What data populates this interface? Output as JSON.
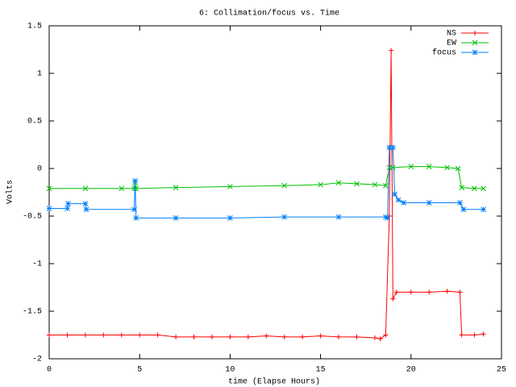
{
  "chart_data": {
    "type": "line",
    "title": "6: Collimation/focus vs. Time",
    "x_label": "time (Elapse Hours)",
    "y_label": "Volts",
    "xlim": [
      0,
      25
    ],
    "xticks": [
      0,
      5,
      10,
      15,
      20,
      25
    ],
    "ylim": [
      -2,
      1.5
    ],
    "yticks": [
      -2,
      -1.5,
      -1,
      -0.5,
      0,
      0.5,
      1,
      1.5
    ],
    "legend": "top-right",
    "series": [
      {
        "name": "NS",
        "color": "#ff0000",
        "marker": "plus",
        "x": [
          0,
          1,
          2,
          3,
          4,
          5,
          6,
          7,
          8,
          9,
          10,
          11,
          12,
          13,
          14,
          15,
          16,
          17,
          18,
          18.3,
          18.6,
          18.8,
          18.9,
          19.0,
          19.2,
          20,
          21,
          22,
          22.7,
          22.8,
          23.5,
          24
        ],
        "values": [
          -1.75,
          -1.75,
          -1.75,
          -1.75,
          -1.75,
          -1.75,
          -1.75,
          -1.77,
          -1.77,
          -1.77,
          -1.77,
          -1.77,
          -1.76,
          -1.77,
          -1.77,
          -1.76,
          -1.77,
          -1.77,
          -1.78,
          -1.79,
          -1.75,
          -0.5,
          1.24,
          -1.37,
          -1.3,
          -1.3,
          -1.3,
          -1.29,
          -1.3,
          -1.75,
          -1.75,
          -1.74
        ]
      },
      {
        "name": "EW",
        "color": "#00c000",
        "marker": "cross",
        "x": [
          0,
          2,
          4,
          4.7,
          4.75,
          4.8,
          7,
          10,
          13,
          15,
          16,
          17,
          18,
          18.6,
          18.8,
          19,
          20,
          21,
          22,
          22.6,
          22.8,
          23.5,
          24
        ],
        "values": [
          -0.21,
          -0.21,
          -0.21,
          -0.21,
          -0.15,
          -0.21,
          -0.2,
          -0.19,
          -0.18,
          -0.17,
          -0.15,
          -0.16,
          -0.17,
          -0.18,
          0.01,
          0.01,
          0.02,
          0.02,
          0.01,
          0.0,
          -0.2,
          -0.21,
          -0.21
        ]
      },
      {
        "name": "focus",
        "color": "#0080ff",
        "marker": "star",
        "x": [
          0,
          1,
          1.05,
          2,
          2.05,
          4.7,
          4.75,
          4.8,
          7,
          10,
          13,
          16,
          18.6,
          18.7,
          18.8,
          19.0,
          19.1,
          19.3,
          19.6,
          21,
          22.7,
          22.9,
          24
        ],
        "values": [
          -0.42,
          -0.42,
          -0.37,
          -0.37,
          -0.43,
          -0.43,
          -0.13,
          -0.52,
          -0.52,
          -0.52,
          -0.51,
          -0.51,
          -0.51,
          -0.52,
          0.22,
          0.22,
          -0.27,
          -0.33,
          -0.36,
          -0.36,
          -0.36,
          -0.43,
          -0.43
        ]
      }
    ]
  }
}
